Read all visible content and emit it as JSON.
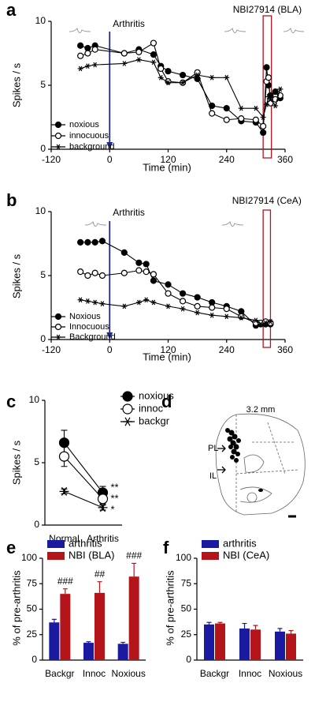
{
  "chart_data": [
    {
      "type": "line",
      "panel": "a",
      "xlabel": "Time (min)",
      "ylabel": "Spikes / s",
      "xlim": [
        -120,
        360
      ],
      "xticks": [
        -120,
        0,
        120,
        240,
        360
      ],
      "ylim": [
        0,
        10
      ],
      "yticks": [
        0,
        5,
        10
      ],
      "x": [
        -60,
        -45,
        -30,
        30,
        60,
        90,
        105,
        120,
        150,
        180,
        210,
        240,
        270,
        300,
        315,
        322,
        326,
        330,
        340,
        350
      ],
      "series": [
        {
          "name": "noxious",
          "marker": "filled-circle",
          "color": "#000000",
          "values": [
            8.1,
            7.9,
            8.1,
            7.5,
            7.8,
            7.4,
            6.5,
            6.1,
            5.8,
            5.5,
            3.4,
            3.2,
            2.2,
            2.1,
            1.3,
            6.4,
            5.0,
            4.2,
            4.5,
            4.0
          ]
        },
        {
          "name": "innocuous",
          "marker": "open-circle",
          "color": "#000000",
          "values": [
            7.3,
            7.5,
            7.8,
            7.5,
            7.6,
            8.3,
            6.3,
            5.3,
            5.2,
            6.0,
            2.8,
            2.3,
            2.4,
            2.3,
            1.8,
            5.3,
            5.6,
            3.6,
            3.9,
            4.2
          ]
        },
        {
          "name": "background",
          "marker": "star",
          "color": "#000000",
          "values": [
            6.3,
            6.5,
            6.6,
            6.7,
            7.0,
            6.8,
            5.6,
            5.2,
            5.2,
            5.8,
            5.6,
            5.6,
            3.2,
            3.2,
            2.5,
            3.5,
            4.1,
            3.9,
            3.4,
            4.7
          ]
        }
      ],
      "arrow": {
        "label": "Arthritis",
        "x": 0,
        "color": "#1c2a8e"
      },
      "box": {
        "label": "NBI27914 (BLA)",
        "x": [
          315,
          332
        ],
        "color": "#b3151b"
      }
    },
    {
      "type": "line",
      "panel": "b",
      "xlabel": "Time (min)",
      "ylabel": "Spikes / s",
      "xlim": [
        -120,
        360
      ],
      "xticks": [
        -120,
        0,
        120,
        240,
        360
      ],
      "ylim": [
        0,
        10
      ],
      "yticks": [
        0,
        5,
        10
      ],
      "x": [
        -60,
        -45,
        -30,
        -15,
        30,
        60,
        75,
        90,
        120,
        150,
        180,
        210,
        240,
        270,
        300,
        310,
        320,
        330
      ],
      "series": [
        {
          "name": "Noxious",
          "marker": "filled-circle",
          "color": "#000000",
          "values": [
            7.6,
            7.6,
            7.6,
            7.7,
            6.8,
            6.0,
            5.9,
            4.6,
            4.3,
            3.6,
            3.3,
            2.9,
            2.6,
            2.2,
            1.1,
            1.2,
            1.2,
            1.2
          ]
        },
        {
          "name": "Innocuous",
          "marker": "open-circle",
          "color": "#000000",
          "values": [
            5.3,
            5.0,
            5.2,
            5.0,
            5.2,
            5.4,
            5.3,
            5.1,
            3.6,
            3.0,
            2.6,
            2.5,
            2.4,
            1.8,
            1.3,
            1.3,
            1.4,
            1.3
          ]
        },
        {
          "name": "Background",
          "marker": "star",
          "color": "#000000",
          "values": [
            3.1,
            3.0,
            2.9,
            2.8,
            2.6,
            2.9,
            3.1,
            2.9,
            2.6,
            2.4,
            2.1,
            1.9,
            1.8,
            1.7,
            1.5,
            1.2,
            1.3,
            1.4
          ]
        }
      ],
      "arrow": {
        "label": "Arthritis",
        "x": 0,
        "color": "#1c2a8e"
      },
      "box": {
        "label": "NBI27914 (CeA)",
        "x": [
          315,
          330
        ],
        "color": "#b3151b"
      }
    },
    {
      "type": "line",
      "panel": "c",
      "ylabel": "Spikes / s",
      "ylim": [
        0,
        10
      ],
      "yticks": [
        0,
        5,
        10
      ],
      "categories": [
        "Normal",
        "Arthritis"
      ],
      "series": [
        {
          "name": "noxious",
          "marker": "filled-circle",
          "color": "#000000",
          "values": [
            6.6,
            2.6
          ],
          "errors": [
            1.0,
            0.5
          ],
          "annotation": "**"
        },
        {
          "name": "innoc",
          "marker": "open-circle",
          "color": "#000000",
          "values": [
            5.5,
            2.1
          ],
          "errors": [
            0.8,
            0.4
          ],
          "annotation": "**"
        },
        {
          "name": "backgr",
          "marker": "star",
          "color": "#000000",
          "values": [
            2.7,
            1.4
          ],
          "errors": [
            0.2,
            0.2
          ],
          "annotation": "*"
        }
      ]
    },
    {
      "type": "bar",
      "panel": "e",
      "ylabel": "% of pre-arthritis",
      "ylim": [
        0,
        100
      ],
      "yticks": [
        0,
        25,
        50,
        75,
        100
      ],
      "categories": [
        "Backgr",
        "Innoc",
        "Noxious"
      ],
      "series": [
        {
          "name": "arthritis",
          "color": "#1a1aa0",
          "values": [
            37,
            17,
            16
          ],
          "errors": [
            3,
            1,
            1.5
          ]
        },
        {
          "name": "NBI (BLA)",
          "color": "#b3151b",
          "values": [
            65,
            66,
            82
          ],
          "errors": [
            5,
            11,
            13
          ],
          "annotations": [
            "###",
            "##",
            "###"
          ]
        }
      ]
    },
    {
      "type": "bar",
      "panel": "f",
      "ylabel": "% of pre-arthritis",
      "ylim": [
        0,
        100
      ],
      "yticks": [
        0,
        25,
        50,
        75,
        100
      ],
      "categories": [
        "Backgr",
        "Innoc",
        "Noxious"
      ],
      "series": [
        {
          "name": "arthritis",
          "color": "#1a1aa0",
          "values": [
            35,
            31,
            28
          ],
          "errors": [
            2,
            5,
            3
          ]
        },
        {
          "name": "NBI (CeA)",
          "color": "#b3151b",
          "values": [
            36,
            30,
            26
          ],
          "errors": [
            1,
            4,
            3
          ]
        }
      ]
    }
  ],
  "diagram": {
    "panel": "d",
    "scale": "3.2 mm",
    "labels": [
      "PL",
      "IL"
    ]
  }
}
